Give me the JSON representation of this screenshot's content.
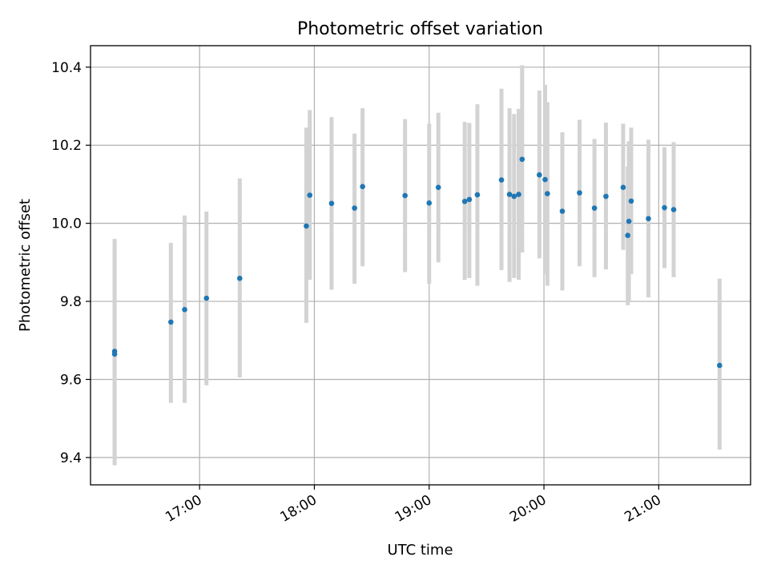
{
  "chart_data": {
    "type": "scatter",
    "title": "Photometric offset variation",
    "xlabel": "UTC time",
    "ylabel": "Photometric offset",
    "xlim_hours": [
      16.05,
      21.8
    ],
    "ylim": [
      9.33,
      10.455
    ],
    "grid": true,
    "x_ticks": [
      {
        "hour": 17,
        "label": "17:00"
      },
      {
        "hour": 18,
        "label": "18:00"
      },
      {
        "hour": 19,
        "label": "19:00"
      },
      {
        "hour": 20,
        "label": "20:00"
      },
      {
        "hour": 21,
        "label": "21:00"
      }
    ],
    "y_ticks": [
      {
        "value": 9.4,
        "label": "9.4"
      },
      {
        "value": 9.6,
        "label": "9.6"
      },
      {
        "value": 9.8,
        "label": "9.8"
      },
      {
        "value": 10.0,
        "label": "10.0"
      },
      {
        "value": 10.2,
        "label": "10.2"
      },
      {
        "value": 10.4,
        "label": "10.4"
      }
    ],
    "marker_color": "#1f77b4",
    "errorbar_color": "#d3d3d3",
    "points": [
      {
        "t": 16.26,
        "y": 9.672,
        "lo": 9.4,
        "hi": 9.96
      },
      {
        "t": 16.26,
        "y": 9.665,
        "lo": 9.38,
        "hi": 9.95
      },
      {
        "t": 16.75,
        "y": 9.747,
        "lo": 9.54,
        "hi": 9.95
      },
      {
        "t": 16.87,
        "y": 9.779,
        "lo": 9.54,
        "hi": 10.02
      },
      {
        "t": 17.06,
        "y": 9.808,
        "lo": 9.585,
        "hi": 10.03
      },
      {
        "t": 17.35,
        "y": 9.859,
        "lo": 9.605,
        "hi": 10.115
      },
      {
        "t": 17.93,
        "y": 9.993,
        "lo": 9.745,
        "hi": 10.245
      },
      {
        "t": 17.96,
        "y": 10.072,
        "lo": 9.855,
        "hi": 10.29
      },
      {
        "t": 18.15,
        "y": 10.051,
        "lo": 9.83,
        "hi": 10.272
      },
      {
        "t": 18.35,
        "y": 10.039,
        "lo": 9.845,
        "hi": 10.23
      },
      {
        "t": 18.42,
        "y": 10.094,
        "lo": 9.89,
        "hi": 10.295
      },
      {
        "t": 18.79,
        "y": 10.071,
        "lo": 9.875,
        "hi": 10.267
      },
      {
        "t": 19.0,
        "y": 10.052,
        "lo": 9.845,
        "hi": 10.255
      },
      {
        "t": 19.08,
        "y": 10.092,
        "lo": 9.9,
        "hi": 10.283
      },
      {
        "t": 19.31,
        "y": 10.056,
        "lo": 9.855,
        "hi": 10.26
      },
      {
        "t": 19.35,
        "y": 10.061,
        "lo": 9.86,
        "hi": 10.257
      },
      {
        "t": 19.42,
        "y": 10.073,
        "lo": 9.84,
        "hi": 10.305
      },
      {
        "t": 19.63,
        "y": 10.111,
        "lo": 9.88,
        "hi": 10.345
      },
      {
        "t": 19.7,
        "y": 10.074,
        "lo": 9.85,
        "hi": 10.295
      },
      {
        "t": 19.74,
        "y": 10.069,
        "lo": 9.86,
        "hi": 10.28
      },
      {
        "t": 19.78,
        "y": 10.074,
        "lo": 9.855,
        "hi": 10.293
      },
      {
        "t": 19.81,
        "y": 10.164,
        "lo": 9.925,
        "hi": 10.405
      },
      {
        "t": 19.96,
        "y": 10.124,
        "lo": 9.91,
        "hi": 10.34
      },
      {
        "t": 20.01,
        "y": 10.112,
        "lo": 9.87,
        "hi": 10.355
      },
      {
        "t": 20.03,
        "y": 10.076,
        "lo": 9.84,
        "hi": 10.31
      },
      {
        "t": 20.16,
        "y": 10.031,
        "lo": 9.828,
        "hi": 10.233
      },
      {
        "t": 20.31,
        "y": 10.078,
        "lo": 9.89,
        "hi": 10.265
      },
      {
        "t": 20.44,
        "y": 10.039,
        "lo": 9.862,
        "hi": 10.216
      },
      {
        "t": 20.54,
        "y": 10.069,
        "lo": 9.882,
        "hi": 10.258
      },
      {
        "t": 20.69,
        "y": 10.092,
        "lo": 9.932,
        "hi": 10.255
      },
      {
        "t": 20.73,
        "y": 9.969,
        "lo": 9.79,
        "hi": 10.145
      },
      {
        "t": 20.74,
        "y": 10.005,
        "lo": 9.8,
        "hi": 10.21
      },
      {
        "t": 20.76,
        "y": 10.057,
        "lo": 9.87,
        "hi": 10.245
      },
      {
        "t": 20.91,
        "y": 10.012,
        "lo": 9.81,
        "hi": 10.214
      },
      {
        "t": 21.05,
        "y": 10.04,
        "lo": 9.885,
        "hi": 10.195
      },
      {
        "t": 21.13,
        "y": 10.035,
        "lo": 9.862,
        "hi": 10.208
      },
      {
        "t": 21.53,
        "y": 9.636,
        "lo": 9.42,
        "hi": 9.858
      }
    ]
  }
}
